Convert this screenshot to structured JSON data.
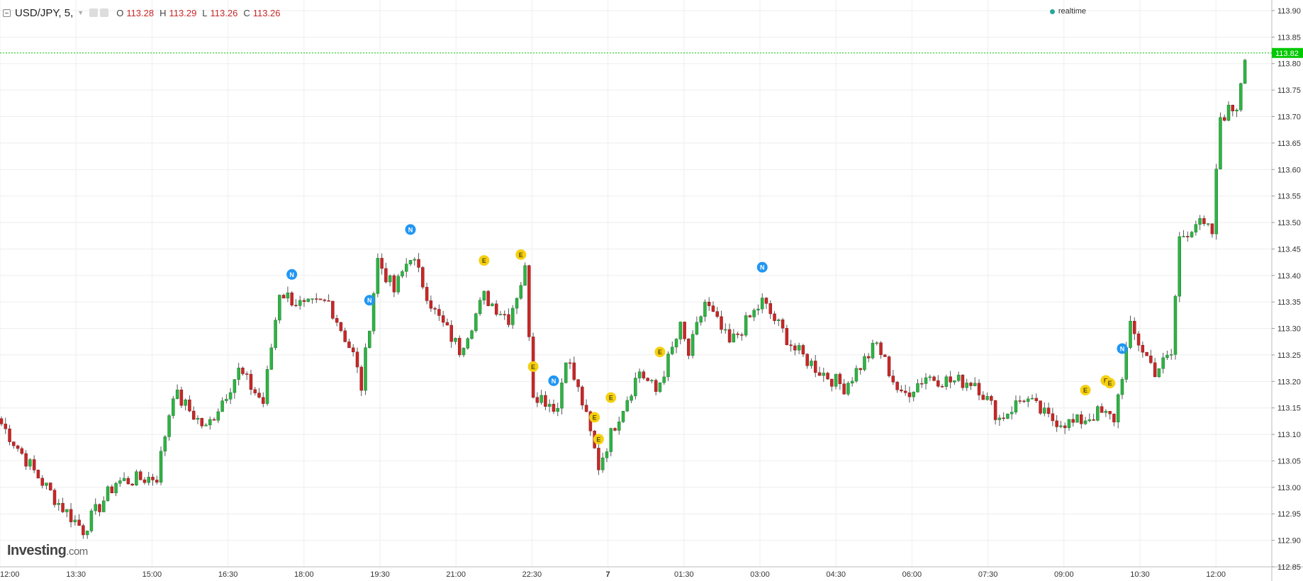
{
  "legend": {
    "symbol": "USD/JPY, 5,",
    "o_label": "O",
    "o_value": "113.28",
    "h_label": "H",
    "h_value": "113.29",
    "l_label": "L",
    "l_value": "113.26",
    "c_label": "C",
    "c_value": "113.26"
  },
  "realtime": "realtime",
  "watermark": {
    "brand": "Investing",
    "domain": ".com"
  },
  "colors": {
    "up": "#2fb344",
    "down": "#c62828",
    "wick": "#555555",
    "grid": "#eeeeee",
    "last_price": "#00c800",
    "news": "#2196f3",
    "event": "#f5d012"
  },
  "chart_data": {
    "type": "candlestick",
    "ylim": [
      112.85,
      113.92
    ],
    "y_ticks": [
      "113.90",
      "113.85",
      "113.80",
      "113.75",
      "113.70",
      "113.65",
      "113.60",
      "113.55",
      "113.50",
      "113.45",
      "113.40",
      "113.35",
      "113.30",
      "113.25",
      "113.20",
      "113.15",
      "113.10",
      "113.05",
      "113.00",
      "112.95",
      "112.90",
      "112.85"
    ],
    "x_ticks": [
      "12:00",
      "13:30",
      "15:00",
      "16:30",
      "18:00",
      "19:30",
      "21:00",
      "22:30",
      "7",
      "01:30",
      "03:00",
      "04:30",
      "06:00",
      "07:30",
      "09:00",
      "10:30",
      "12:00"
    ],
    "last_price": "113.82",
    "anchors": [
      {
        "i": 0,
        "p": 113.12
      },
      {
        "i": 8,
        "p": 113.03
      },
      {
        "i": 14,
        "p": 112.97
      },
      {
        "i": 20,
        "p": 112.92
      },
      {
        "i": 28,
        "p": 113.01
      },
      {
        "i": 38,
        "p": 113.02
      },
      {
        "i": 42,
        "p": 113.18
      },
      {
        "i": 50,
        "p": 113.11
      },
      {
        "i": 58,
        "p": 113.22
      },
      {
        "i": 64,
        "p": 113.16
      },
      {
        "i": 68,
        "p": 113.37
      },
      {
        "i": 74,
        "p": 113.34
      },
      {
        "i": 80,
        "p": 113.35
      },
      {
        "i": 86,
        "p": 113.25
      },
      {
        "i": 88,
        "p": 113.19
      },
      {
        "i": 92,
        "p": 113.43
      },
      {
        "i": 96,
        "p": 113.37
      },
      {
        "i": 100,
        "p": 113.44
      },
      {
        "i": 106,
        "p": 113.33
      },
      {
        "i": 112,
        "p": 113.26
      },
      {
        "i": 118,
        "p": 113.36
      },
      {
        "i": 124,
        "p": 113.32
      },
      {
        "i": 128,
        "p": 113.41
      },
      {
        "i": 130,
        "p": 113.18
      },
      {
        "i": 136,
        "p": 113.15
      },
      {
        "i": 138,
        "p": 113.25
      },
      {
        "i": 142,
        "p": 113.16
      },
      {
        "i": 146,
        "p": 113.04
      },
      {
        "i": 150,
        "p": 113.12
      },
      {
        "i": 156,
        "p": 113.22
      },
      {
        "i": 160,
        "p": 113.18
      },
      {
        "i": 166,
        "p": 113.3
      },
      {
        "i": 168,
        "p": 113.25
      },
      {
        "i": 172,
        "p": 113.35
      },
      {
        "i": 178,
        "p": 113.27
      },
      {
        "i": 186,
        "p": 113.35
      },
      {
        "i": 194,
        "p": 113.26
      },
      {
        "i": 200,
        "p": 113.22
      },
      {
        "i": 206,
        "p": 113.19
      },
      {
        "i": 214,
        "p": 113.27
      },
      {
        "i": 220,
        "p": 113.17
      },
      {
        "i": 226,
        "p": 113.21
      },
      {
        "i": 232,
        "p": 113.2
      },
      {
        "i": 238,
        "p": 113.2
      },
      {
        "i": 244,
        "p": 113.13
      },
      {
        "i": 250,
        "p": 113.17
      },
      {
        "i": 256,
        "p": 113.13
      },
      {
        "i": 262,
        "p": 113.12
      },
      {
        "i": 268,
        "p": 113.14
      },
      {
        "i": 272,
        "p": 113.13
      },
      {
        "i": 276,
        "p": 113.3
      },
      {
        "i": 282,
        "p": 113.22
      },
      {
        "i": 286,
        "p": 113.25
      },
      {
        "i": 288,
        "p": 113.47
      },
      {
        "i": 292,
        "p": 113.5
      },
      {
        "i": 296,
        "p": 113.48
      },
      {
        "i": 298,
        "p": 113.7
      },
      {
        "i": 302,
        "p": 113.72
      },
      {
        "i": 304,
        "p": 113.82
      }
    ],
    "events": [
      {
        "type": "N",
        "i": 71
      },
      {
        "type": "N",
        "i": 90
      },
      {
        "type": "N",
        "i": 100
      },
      {
        "type": "E",
        "i": 118
      },
      {
        "type": "E",
        "i": 127
      },
      {
        "type": "E",
        "i": 130
      },
      {
        "type": "N",
        "i": 135
      },
      {
        "type": "E",
        "i": 145
      },
      {
        "type": "E",
        "i": 146
      },
      {
        "type": "E",
        "i": 149
      },
      {
        "type": "E",
        "i": 161
      },
      {
        "type": "N",
        "i": 186
      },
      {
        "type": "E",
        "i": 265
      },
      {
        "type": "E",
        "i": 270
      },
      {
        "type": "E",
        "i": 271
      },
      {
        "type": "N",
        "i": 274
      }
    ]
  }
}
